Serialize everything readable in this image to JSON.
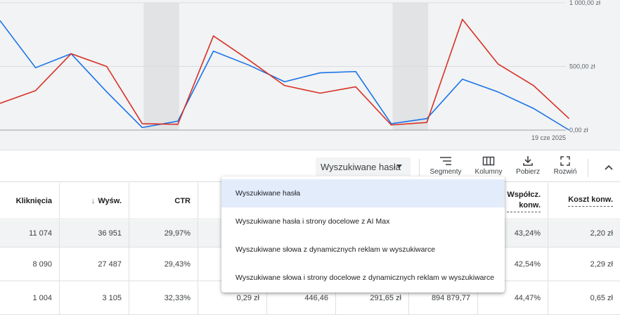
{
  "chart": {
    "y_ticks": [
      "1 000,00 zł",
      "500,00 zł",
      "0,00 zł"
    ],
    "x_label": "19 cze 2025",
    "colors": {
      "blue": "#1a73e8",
      "red": "#d93025",
      "band": "#e1e3e5",
      "grid": "#dadce0",
      "axis": "#9aa0a6"
    }
  },
  "chart_data": {
    "type": "line",
    "ylim": [
      0,
      1000
    ],
    "x": [
      1,
      2,
      3,
      4,
      5,
      6,
      7,
      8,
      9,
      10,
      11,
      12,
      13,
      14,
      15,
      16,
      17
    ],
    "x_tick_labels": [
      {
        "x": 17,
        "label": "19 cze 2025"
      }
    ],
    "weekend_bands": [
      [
        5,
        6
      ],
      [
        12,
        13
      ]
    ],
    "series": [
      {
        "color": "#1a73e8",
        "values": [
          860,
          490,
          600,
          300,
          20,
          70,
          620,
          510,
          380,
          450,
          460,
          50,
          90,
          400,
          300,
          170,
          0
        ]
      },
      {
        "color": "#d93025",
        "values": [
          210,
          310,
          600,
          500,
          50,
          45,
          740,
          550,
          350,
          290,
          340,
          40,
          60,
          870,
          520,
          350,
          90
        ]
      }
    ]
  },
  "toolbar": {
    "dropdown_label": "Wyszukiwane hasła",
    "segments_label": "Segmenty",
    "columns_label": "Kolumny",
    "download_label": "Pobierz",
    "expand_label": "Rozwiń"
  },
  "menu": {
    "items": [
      "Wyszukiwane hasła",
      "Wyszukiwane hasła i strony docelowe z AI Max",
      "Wyszukiwane słowa z dynamicznych reklam w wyszukiwarce",
      "Wyszukiwane słowa i strony docelowe z dynamicznych reklam w wyszukiwarce"
    ]
  },
  "table": {
    "headers": {
      "clicks": "Kliknięcia",
      "impressions": "Wyśw.",
      "sort_arrow": "↓",
      "ctr": "CTR",
      "conv_rate_1": "Współcz.",
      "conv_rate_2": "konw.",
      "cost_conv": "Koszt konw."
    },
    "rows": [
      {
        "clicks": "11 074",
        "impressions": "36 951",
        "ctr": "29,97%",
        "avg_cpc": "",
        "conversions": "",
        "cost": "",
        "conv_value": "",
        "conv_rate": "43,24%",
        "cost_conv": "2,20 zł"
      },
      {
        "clicks": "8 090",
        "impressions": "27 487",
        "ctr": "29,43%",
        "avg_cpc": "",
        "conversions": "",
        "cost": "",
        "conv_value": "",
        "conv_rate": "42,54%",
        "cost_conv": "2,29 zł"
      },
      {
        "clicks": "1 004",
        "impressions": "3 105",
        "ctr": "32,33%",
        "avg_cpc": "0,29 zł",
        "conversions": "446,46",
        "cost": "291,65 zł",
        "conv_value": "894 879,77",
        "conv_rate": "44,47%",
        "cost_conv": "0,65 zł"
      }
    ]
  }
}
